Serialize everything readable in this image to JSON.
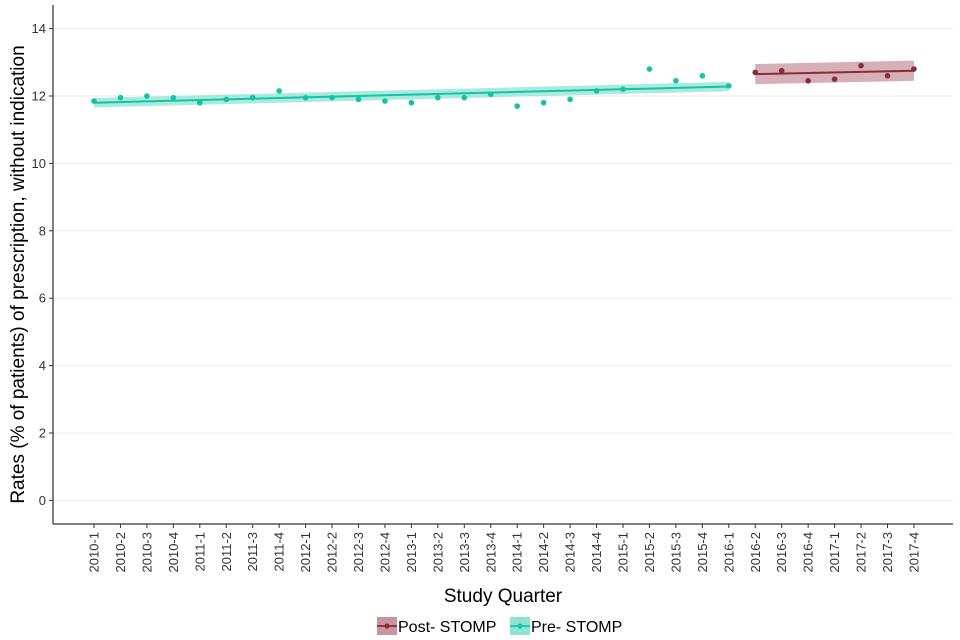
{
  "chart_data": {
    "type": "scatter",
    "xlabel": "Study Quarter",
    "ylabel": "Rates (% of patients) of prescription, without indication",
    "ylim": [
      -0.7,
      14.7
    ],
    "yticks": [
      0,
      2,
      4,
      6,
      8,
      10,
      12,
      14
    ],
    "grid": "horizontal",
    "legend_position": "bottom",
    "categories": [
      "2010-1",
      "2010-2",
      "2010-3",
      "2010-4",
      "2011-1",
      "2011-2",
      "2011-3",
      "2011-4",
      "2012-1",
      "2012-2",
      "2012-3",
      "2012-4",
      "2013-1",
      "2013-2",
      "2013-3",
      "2013-4",
      "2014-1",
      "2014-2",
      "2014-3",
      "2014-4",
      "2015-1",
      "2015-2",
      "2015-3",
      "2015-4",
      "2016-1",
      "2016-2",
      "2016-3",
      "2016-4",
      "2017-1",
      "2017-2",
      "2017-3",
      "2017-4"
    ],
    "series": [
      {
        "name": "Post- STOMP",
        "color": "#8b2a3b",
        "ribbon_color": "#c9949e",
        "x": [
          "2016-2",
          "2016-3",
          "2016-4",
          "2017-1",
          "2017-2",
          "2017-3",
          "2017-4"
        ],
        "values": [
          12.7,
          12.75,
          12.45,
          12.5,
          12.9,
          12.6,
          12.8
        ],
        "fit": {
          "start": 12.65,
          "end": 12.75,
          "ci_lower_start": 12.35,
          "ci_upper_start": 12.95,
          "ci_lower_end": 12.45,
          "ci_upper_end": 13.05
        }
      },
      {
        "name": "Pre- STOMP",
        "color": "#12c4a6",
        "ribbon_color": "#8fe3d3",
        "x": [
          "2010-1",
          "2010-2",
          "2010-3",
          "2010-4",
          "2011-1",
          "2011-2",
          "2011-3",
          "2011-4",
          "2012-1",
          "2012-2",
          "2012-3",
          "2012-4",
          "2013-1",
          "2013-2",
          "2013-3",
          "2013-4",
          "2014-1",
          "2014-2",
          "2014-3",
          "2014-4",
          "2015-1",
          "2015-2",
          "2015-3",
          "2015-4",
          "2016-1"
        ],
        "values": [
          11.85,
          11.95,
          12.0,
          11.95,
          11.8,
          11.9,
          11.95,
          12.15,
          11.95,
          11.95,
          11.9,
          11.85,
          11.8,
          11.95,
          11.95,
          12.05,
          11.7,
          11.8,
          11.9,
          12.15,
          12.2,
          12.8,
          12.45,
          12.6,
          12.3
        ],
        "fit": {
          "start": 11.8,
          "end": 12.28,
          "ci_lower_start": 11.66,
          "ci_upper_start": 11.94,
          "ci_lower_end": 12.14,
          "ci_upper_end": 12.42
        }
      }
    ]
  }
}
